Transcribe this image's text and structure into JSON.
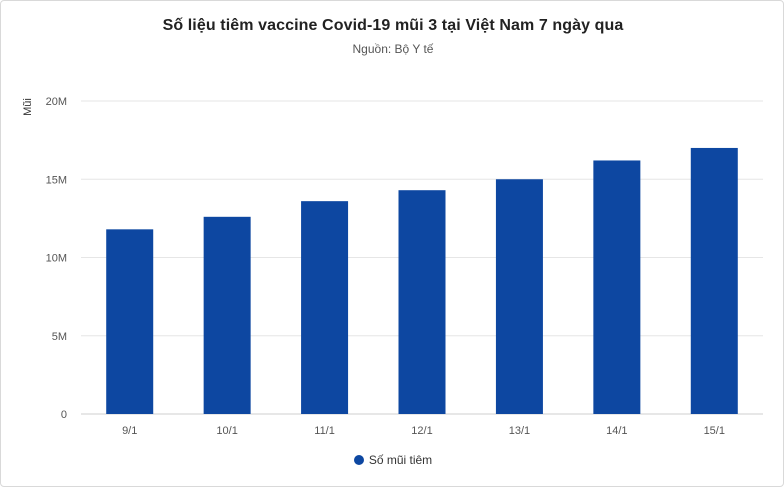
{
  "chart_data": {
    "type": "bar",
    "title": "Số liệu tiêm vaccine Covid-19 mũi 3 tại Việt Nam 7 ngày qua",
    "subtitle": "Nguồn: Bộ Y tế",
    "xlabel": "",
    "ylabel": "Mũi",
    "categories": [
      "9/1",
      "10/1",
      "11/1",
      "12/1",
      "13/1",
      "14/1",
      "15/1"
    ],
    "series": [
      {
        "name": "Số mũi tiêm",
        "values": [
          11800000,
          12600000,
          13600000,
          14300000,
          15000000,
          16200000,
          17000000
        ]
      }
    ],
    "ylim": [
      0,
      20000000
    ],
    "yticks": [
      0,
      5000000,
      10000000,
      15000000,
      20000000
    ],
    "ytick_labels": [
      "0",
      "5M",
      "10M",
      "15M",
      "20M"
    ],
    "grid": true,
    "legend_position": "bottom-center",
    "colors": {
      "bar": "#0d47a1",
      "grid": "#e6e6e6"
    }
  }
}
